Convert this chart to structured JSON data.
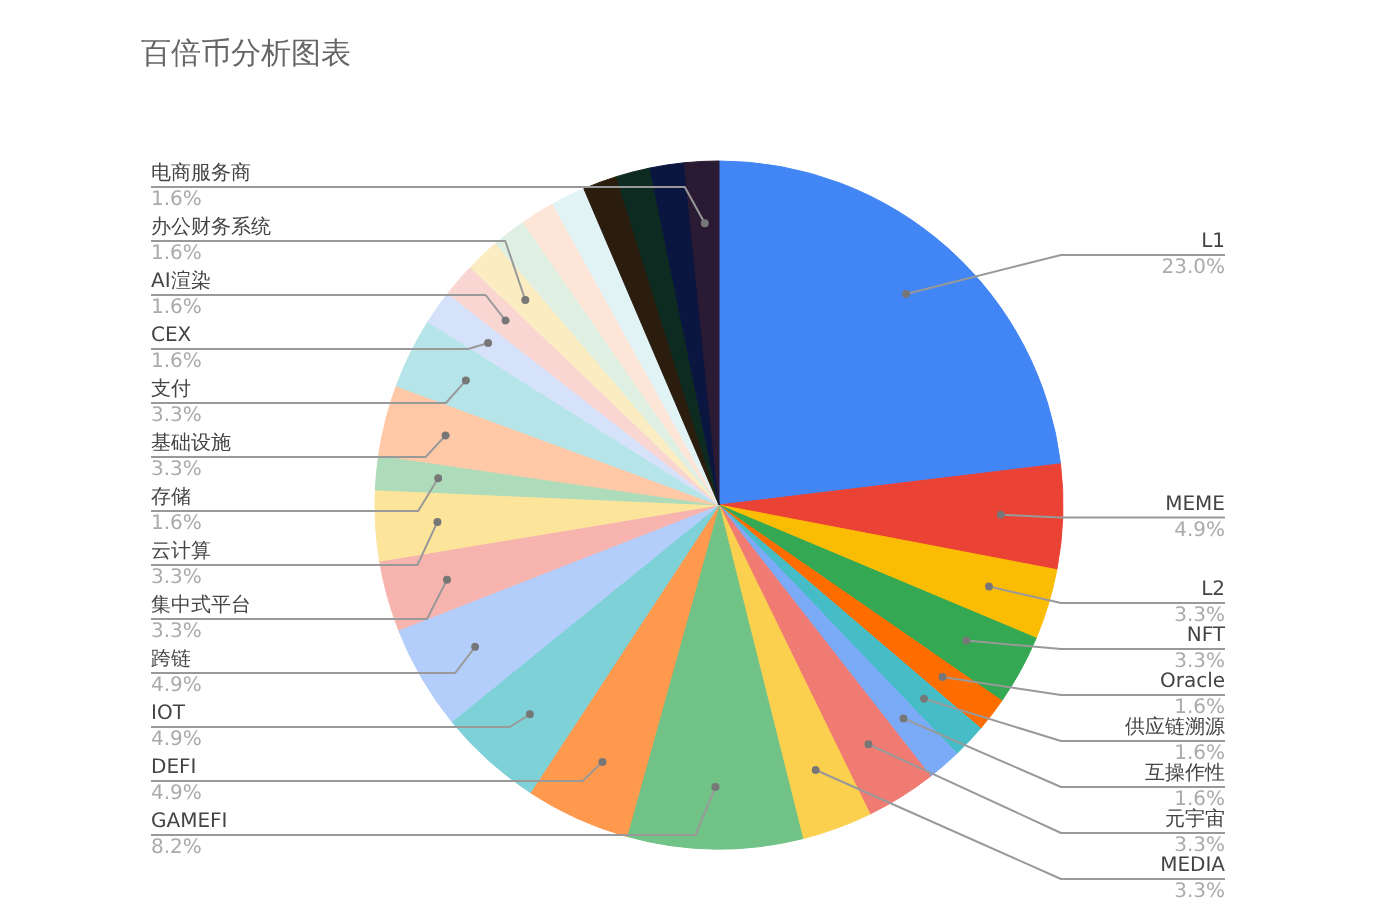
{
  "chart_data": {
    "type": "pie",
    "title": "百倍币分析图表",
    "categories": [
      "L1",
      "MEME",
      "L2",
      "NFT",
      "Oracle",
      "供应链溯源",
      "互操作性",
      "元宇宙",
      "MEDIA",
      "GAMEFI",
      "DEFI",
      "IOT",
      "跨链",
      "集中式平台",
      "云计算",
      "存储",
      "基础设施",
      "支付",
      "CEX",
      "AI渲染",
      "办公财务系统",
      null,
      null,
      null,
      null,
      null,
      null,
      "电商服务商"
    ],
    "values": [
      23.0,
      4.9,
      3.3,
      3.3,
      1.6,
      1.6,
      1.6,
      3.3,
      3.3,
      8.2,
      4.9,
      4.9,
      4.9,
      3.3,
      3.3,
      1.6,
      3.3,
      3.3,
      1.6,
      1.6,
      1.6,
      1.6,
      1.6,
      1.6,
      1.6,
      1.6,
      1.6,
      1.6
    ],
    "value_labels": [
      "23.0%",
      "4.9%",
      "3.3%",
      "3.3%",
      "1.6%",
      "1.6%",
      "1.6%",
      "3.3%",
      "3.3%",
      "8.2%",
      "4.9%",
      "4.9%",
      "4.9%",
      "3.3%",
      "3.3%",
      "1.6%",
      "3.3%",
      "3.3%",
      "1.6%",
      "1.6%",
      "1.6%",
      null,
      null,
      null,
      null,
      null,
      null,
      "1.6%"
    ],
    "colors": [
      "#4285f4",
      "#ea4335",
      "#fbbc04",
      "#34a853",
      "#ff6d01",
      "#46bdc6",
      "#7baaf7",
      "#f07b72",
      "#fcd04f",
      "#71c287",
      "#ff994d",
      "#7ed1d7",
      "#b3cefb",
      "#f7b4ae",
      "#fde49b",
      "#aedcba",
      "#ffc8a6",
      "#b5e5e8",
      "#d6e2fa",
      "#fad6d3",
      "#fbecc2",
      "#dff0e3",
      "#fde6d8",
      "#e2f3f6",
      "#2b1d0e",
      "#0d2b20",
      "#0b1640",
      "#2a1a33"
    ]
  }
}
